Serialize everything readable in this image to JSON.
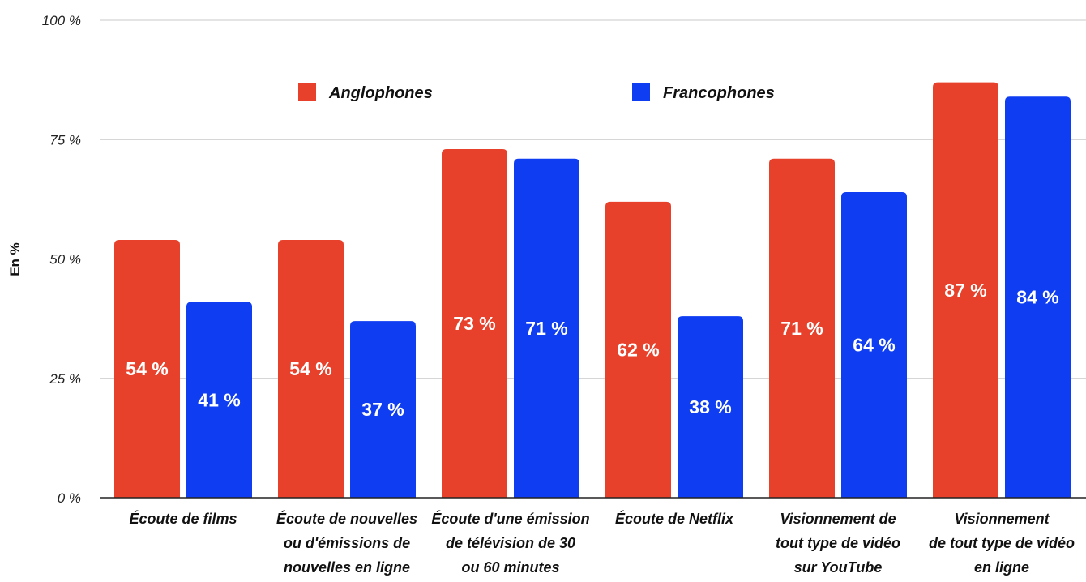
{
  "chart_data": {
    "type": "bar",
    "title": "",
    "xlabel": "",
    "ylabel": "En %",
    "ylim": [
      0,
      100
    ],
    "yticks": [
      0,
      25,
      50,
      75,
      100
    ],
    "ytick_labels": [
      "0 %",
      "25 %",
      "50 %",
      "75 %",
      "100 %"
    ],
    "grid": true,
    "legend_position": "top-center",
    "categories": [
      [
        "Écoute de films"
      ],
      [
        "Écoute de nouvelles",
        "ou d'émissions de",
        "nouvelles en ligne"
      ],
      [
        "Écoute d'une émission",
        "de télévision de 30",
        "ou 60 minutes"
      ],
      [
        "Écoute de Netflix"
      ],
      [
        "Visionnement de",
        "tout type de vidéo",
        "sur YouTube"
      ],
      [
        "Visionnement",
        "de tout type de vidéo",
        "en ligne"
      ]
    ],
    "series": [
      {
        "name": "Anglophones",
        "color": "#E8412B",
        "values": [
          54,
          54,
          73,
          62,
          71,
          87
        ],
        "labels": [
          "54 %",
          "54 %",
          "73 %",
          "62 %",
          "71 %",
          "87 %"
        ]
      },
      {
        "name": "Francophones",
        "color": "#0E3DF2",
        "values": [
          41,
          37,
          71,
          38,
          64,
          84
        ],
        "labels": [
          "41 %",
          "37 %",
          "71 %",
          "38 %",
          "64 %",
          "84 %"
        ]
      }
    ]
  }
}
